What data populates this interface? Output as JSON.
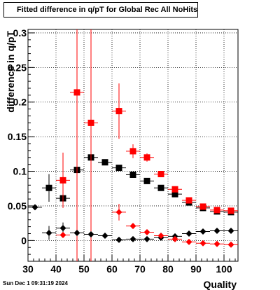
{
  "chart_data": {
    "type": "scatter",
    "title": "Fitted difference in q/pT for Global Rec All NoHits",
    "xlabel": "Quality",
    "ylabel": "difference in q/pT",
    "xlim": [
      30,
      105
    ],
    "ylim": [
      -0.03,
      0.305
    ],
    "xticks": [
      30,
      40,
      50,
      60,
      70,
      80,
      90,
      100
    ],
    "yticks": [
      0,
      0.05,
      0.1,
      0.15,
      0.2,
      0.25,
      0.3
    ],
    "ytick_labels": [
      "0",
      "0.05",
      "0.1",
      "0.15",
      "0.2",
      "0.25",
      "0.3"
    ],
    "grid": true,
    "series": [
      {
        "marker": "square",
        "color": "#000000",
        "x": [
          37.5,
          42.5,
          47.5,
          52.5,
          57.5,
          62.5,
          67.5,
          72.5,
          77.5,
          82.5,
          87.5,
          92.5,
          97.5,
          102.5
        ],
        "y": [
          0.076,
          0.061,
          0.102,
          0.12,
          0.113,
          0.105,
          0.095,
          0.086,
          0.076,
          0.067,
          0.055,
          0.047,
          0.042,
          0.041
        ],
        "yerr": [
          0.02,
          0.01,
          0.003,
          0.003,
          0.003,
          0.002,
          0.002,
          0.002,
          0.002,
          0.002,
          0.002,
          0.002,
          0.002,
          0.002
        ]
      },
      {
        "marker": "square",
        "color": "#ff0000",
        "x": [
          42.5,
          47.5,
          52.5,
          62.5,
          67.5,
          72.5,
          77.5,
          82.5,
          87.5,
          92.5,
          97.5,
          102.5
        ],
        "y": [
          0.087,
          0.214,
          0.17,
          0.187,
          0.129,
          0.12,
          0.096,
          0.074,
          0.058,
          0.049,
          0.044,
          0.043
        ],
        "yerr": [
          0.04,
          0.3,
          0.3,
          0.04,
          0.01,
          0.006,
          0.004,
          0.003,
          0.002,
          0.002,
          0.002,
          0.002
        ]
      },
      {
        "marker": "diamond",
        "color": "#000000",
        "x": [
          32.5,
          37.5,
          42.5,
          47.5,
          52.5,
          57.5,
          62.5,
          67.5,
          72.5,
          77.5,
          82.5,
          87.5,
          92.5,
          97.5,
          102.5
        ],
        "y": [
          0.048,
          0.011,
          0.018,
          0.011,
          0.009,
          0.007,
          0.001,
          0.002,
          0.002,
          0.004,
          0.006,
          0.01,
          0.013,
          0.014,
          0.014
        ],
        "yerr": [
          0.003,
          0.01,
          0.008,
          0.004,
          0.003,
          0.002,
          0.002,
          0.002,
          0.002,
          0.002,
          0.002,
          0.002,
          0.002,
          0.002,
          0.002
        ]
      },
      {
        "marker": "diamond",
        "color": "#ff0000",
        "x": [
          42.5,
          62.5,
          67.5,
          72.5,
          77.5,
          82.5,
          87.5,
          92.5,
          97.5,
          102.5
        ],
        "y": [
          0.008,
          0.041,
          0.021,
          0.012,
          0.007,
          0.002,
          -0.002,
          -0.004,
          -0.005,
          -0.006
        ],
        "yerr": [
          0.004,
          0.012,
          0.004,
          0.003,
          0.002,
          0.002,
          0.002,
          0.002,
          0.002,
          0.002
        ]
      }
    ]
  },
  "footer": {
    "datestamp": "Sun Dec  1 09:31:19 2024"
  }
}
